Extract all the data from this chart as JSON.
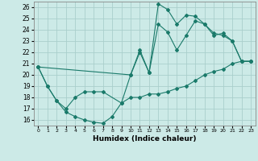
{
  "xlabel": "Humidex (Indice chaleur)",
  "xlim": [
    -0.5,
    23.5
  ],
  "ylim": [
    15.5,
    26.5
  ],
  "xticks": [
    0,
    1,
    2,
    3,
    4,
    5,
    6,
    7,
    8,
    9,
    10,
    11,
    12,
    13,
    14,
    15,
    16,
    17,
    18,
    19,
    20,
    21,
    22,
    23
  ],
  "yticks": [
    16,
    17,
    18,
    19,
    20,
    21,
    22,
    23,
    24,
    25,
    26
  ],
  "background_color": "#cceae7",
  "grid_color": "#aacfcc",
  "line_color": "#1a7a6a",
  "line1_x": [
    0,
    1,
    2,
    3,
    4,
    5,
    6,
    7,
    8,
    9,
    10,
    11,
    12,
    13,
    14,
    15,
    16,
    17,
    18,
    19,
    20,
    21,
    22,
    23
  ],
  "line1_y": [
    20.7,
    19.0,
    17.7,
    16.7,
    16.3,
    16.0,
    15.8,
    15.7,
    16.3,
    17.5,
    18.0,
    18.0,
    18.3,
    18.3,
    18.5,
    18.8,
    19.0,
    19.5,
    20.0,
    20.3,
    20.5,
    21.0,
    21.2,
    21.2
  ],
  "line2_x": [
    0,
    1,
    2,
    3,
    4,
    5,
    6,
    7,
    9,
    10,
    11,
    12,
    13,
    14,
    15,
    16,
    17,
    18,
    19,
    20,
    21,
    22,
    23
  ],
  "line2_y": [
    20.7,
    19.0,
    17.7,
    17.0,
    18.0,
    18.5,
    18.5,
    18.5,
    17.5,
    20.0,
    22.2,
    20.2,
    26.3,
    25.8,
    24.5,
    25.3,
    25.2,
    24.5,
    23.7,
    23.5,
    23.0,
    21.2,
    21.2
  ],
  "line3_x": [
    0,
    10,
    11,
    12,
    13,
    14,
    15,
    16,
    17,
    18,
    19,
    20,
    21,
    22,
    23
  ],
  "line3_y": [
    20.7,
    20.0,
    22.0,
    20.2,
    24.5,
    23.8,
    22.2,
    23.5,
    24.8,
    24.5,
    23.5,
    23.7,
    23.0,
    21.2,
    21.2
  ]
}
